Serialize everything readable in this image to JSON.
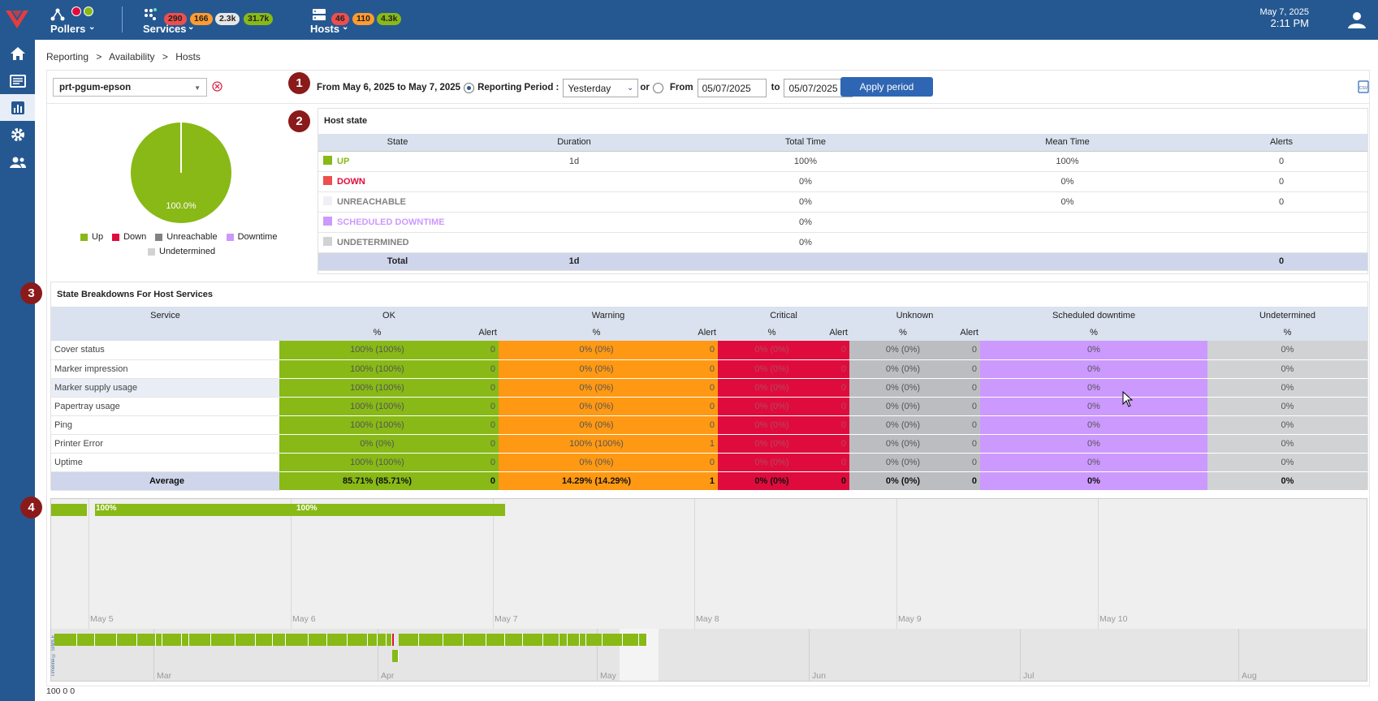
{
  "topbar": {
    "pollers_label": "Pollers",
    "services_label": "Services",
    "services_badges": [
      "290",
      "166",
      "2.3k",
      "31.7k"
    ],
    "hosts_label": "Hosts",
    "hosts_badges": [
      "46",
      "110",
      "4.3k"
    ],
    "date": "May 7, 2025",
    "time": "2:11 PM",
    "colors": {
      "brand": "#255891",
      "critical": "#ee4e4e",
      "warning": "#ff9b2f",
      "unknown": "#e6e6e6",
      "ok": "#88b917"
    }
  },
  "sidebar": {
    "icons": [
      "home-icon",
      "monitoring-icon",
      "reporting-icon",
      "configuration-icon",
      "administration-icon"
    ]
  },
  "breadcrumb": [
    "Reporting",
    ">",
    "Availability",
    ">",
    "Hosts"
  ],
  "host_select": {
    "value": "prt-pgum-epson"
  },
  "period": {
    "range_text": "From May 6, 2025 to May 7, 2025",
    "reporting_label": "Reporting Period :",
    "reporting_value": "Yesterday",
    "or_label": "or",
    "from_label": "From",
    "from_value": "05/07/2025",
    "to_label": "to",
    "to_value": "05/07/2025",
    "apply_label": "Apply period"
  },
  "badges": [
    "1",
    "2",
    "3",
    "4"
  ],
  "pie": {
    "label": "100.0%",
    "legend": [
      "Up",
      "Down",
      "Unreachable",
      "Downtime",
      "Undetermined"
    ],
    "up_fraction": 1.0
  },
  "host_state": {
    "title": "Host state",
    "columns": [
      "State",
      "Duration",
      "Total Time",
      "Mean Time",
      "Alerts"
    ],
    "rows": [
      {
        "state": "UP",
        "duration": "1d",
        "total": "100%",
        "mean": "100%",
        "alerts": "0",
        "color": "#88b917"
      },
      {
        "state": "DOWN",
        "duration": "",
        "total": "0%",
        "mean": "0%",
        "alerts": "0",
        "color": "#e00b3d"
      },
      {
        "state": "UNREACHABLE",
        "duration": "",
        "total": "0%",
        "mean": "0%",
        "alerts": "0",
        "color": "#818285"
      },
      {
        "state": "SCHEDULED DOWNTIME",
        "duration": "",
        "total": "0%",
        "mean": "",
        "alerts": "",
        "color": "#cc99ff"
      },
      {
        "state": "UNDETERMINED",
        "duration": "",
        "total": "0%",
        "mean": "",
        "alerts": "",
        "color": "#808080"
      }
    ],
    "total": {
      "label": "Total",
      "duration": "1d",
      "alerts": "0"
    }
  },
  "breakdown": {
    "title": "State Breakdowns For Host Services",
    "group_headers": [
      "Service",
      "OK",
      "Warning",
      "Critical",
      "Unknown",
      "Scheduled downtime",
      "Undetermined"
    ],
    "sub_headers": [
      "%",
      "Alert",
      "%",
      "Alert",
      "%",
      "Alert",
      "%",
      "Alert",
      "%",
      "%"
    ],
    "rows": [
      {
        "service": "Cover status",
        "cells": [
          "100% (100%)",
          "0",
          "0% (0%)",
          "0",
          "0% (0%)",
          "0",
          "0% (0%)",
          "0",
          "0%",
          "0%"
        ]
      },
      {
        "service": "Marker impression",
        "cells": [
          "100% (100%)",
          "0",
          "0% (0%)",
          "0",
          "0% (0%)",
          "0",
          "0% (0%)",
          "0",
          "0%",
          "0%"
        ]
      },
      {
        "service": "Marker supply usage",
        "cells": [
          "100% (100%)",
          "0",
          "0% (0%)",
          "0",
          "0% (0%)",
          "0",
          "0% (0%)",
          "0",
          "0%",
          "0%"
        ]
      },
      {
        "service": "Papertray usage",
        "cells": [
          "100% (100%)",
          "0",
          "0% (0%)",
          "0",
          "0% (0%)",
          "0",
          "0% (0%)",
          "0",
          "0%",
          "0%"
        ]
      },
      {
        "service": "Ping",
        "cells": [
          "100% (100%)",
          "0",
          "0% (0%)",
          "0",
          "0% (0%)",
          "0",
          "0% (0%)",
          "0",
          "0%",
          "0%"
        ]
      },
      {
        "service": "Printer Error",
        "cells": [
          "0% (0%)",
          "0",
          "100% (100%)",
          "1",
          "0% (0%)",
          "0",
          "0% (0%)",
          "0",
          "0%",
          "0%"
        ]
      },
      {
        "service": "Uptime",
        "cells": [
          "100% (100%)",
          "0",
          "0% (0%)",
          "0",
          "0% (0%)",
          "0",
          "0% (0%)",
          "0",
          "0%",
          "0%"
        ]
      }
    ],
    "average": {
      "label": "Average",
      "cells": [
        "85.71% (85.71%)",
        "0",
        "14.29% (14.29%)",
        "1",
        "0% (0%)",
        "0",
        "0% (0%)",
        "0",
        "0%",
        "0%"
      ]
    }
  },
  "timeline": {
    "day_labels": [
      "May 5",
      "May 6",
      "May 7",
      "May 8",
      "May 9",
      "May 10"
    ],
    "bar_labels": [
      "100%",
      "100%"
    ],
    "month_labels": [
      "Mar",
      "Apr",
      "May",
      "Jun",
      "Jul",
      "Aug"
    ],
    "vertical_label": "Timeline © SIMILE"
  },
  "footer_text": "100 0 0"
}
